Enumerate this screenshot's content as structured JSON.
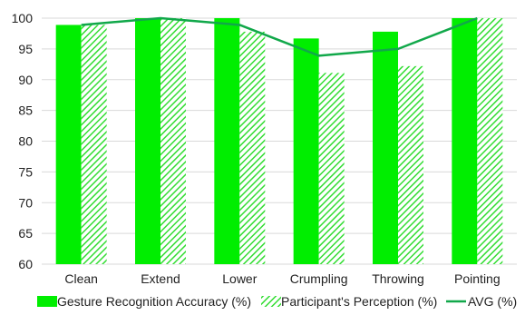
{
  "chart_data": {
    "type": "bar",
    "title": "",
    "xlabel": "",
    "ylabel": "",
    "categories": [
      "Clean",
      "Extend",
      "Lower",
      "Crumpling",
      "Throwing",
      "Pointing"
    ],
    "ylim": [
      60,
      100
    ],
    "yticks": [
      60,
      65,
      70,
      75,
      80,
      85,
      90,
      95,
      100
    ],
    "grid": true,
    "legend_position": "bottom",
    "series": [
      {
        "name": "Gesture Recognition Accuracy (%)",
        "type": "bar",
        "style": "solid",
        "color": "#00ee00",
        "values": [
          98.9,
          100,
          100,
          96.7,
          97.8,
          100
        ]
      },
      {
        "name": "Participant's Perception (%)",
        "type": "bar",
        "style": "hatched",
        "color": "#33dd33",
        "values": [
          98.9,
          100,
          97.8,
          91.1,
          92.2,
          100
        ]
      },
      {
        "name": "AVG (%)",
        "type": "line",
        "color": "#11a84a",
        "values": [
          98.9,
          100,
          98.9,
          93.9,
          95,
          100
        ]
      }
    ]
  }
}
